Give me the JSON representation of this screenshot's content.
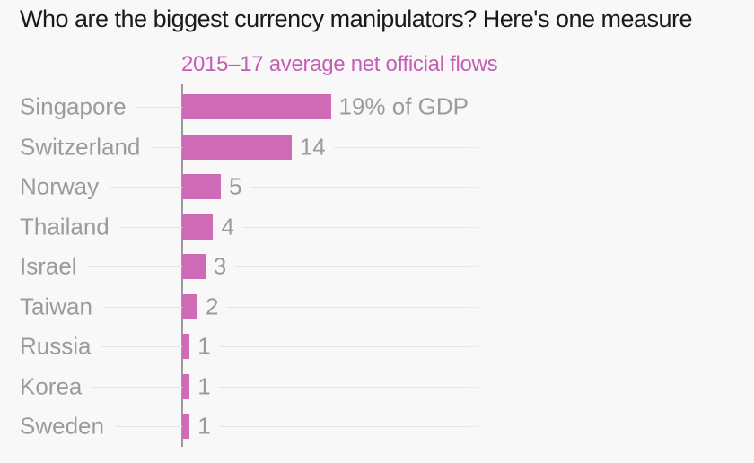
{
  "title": "Who are the biggest currency manipulators? Here's one measure",
  "subtitle": "2015–17 average net official flows",
  "chart_data": {
    "type": "bar",
    "orientation": "horizontal",
    "title": "Who are the biggest currency manipulators? Here's one measure",
    "series_label": "2015–17 average net official flows",
    "unit": "% of GDP",
    "categories": [
      "Singapore",
      "Switzerland",
      "Norway",
      "Thailand",
      "Israel",
      "Taiwan",
      "Russia",
      "Korea",
      "Sweden"
    ],
    "values": [
      19,
      14,
      5,
      4,
      3,
      2,
      1,
      1,
      1
    ],
    "value_labels": [
      "19% of GDP",
      "14",
      "5",
      "4",
      "3",
      "2",
      "1",
      "1",
      "1"
    ],
    "xlim": [
      0,
      19
    ],
    "grid": "horizontal row guide lines",
    "legend_position": "none",
    "colors": {
      "bar": "#cf6ab7",
      "subtitle_text": "#c45fb5",
      "axis_labels": "#9b9b9b",
      "title_text": "#1a1a1a",
      "gridline": "#e5e4e5",
      "axis_line": "#9a9a9a",
      "background": "#f9f8f9"
    }
  }
}
